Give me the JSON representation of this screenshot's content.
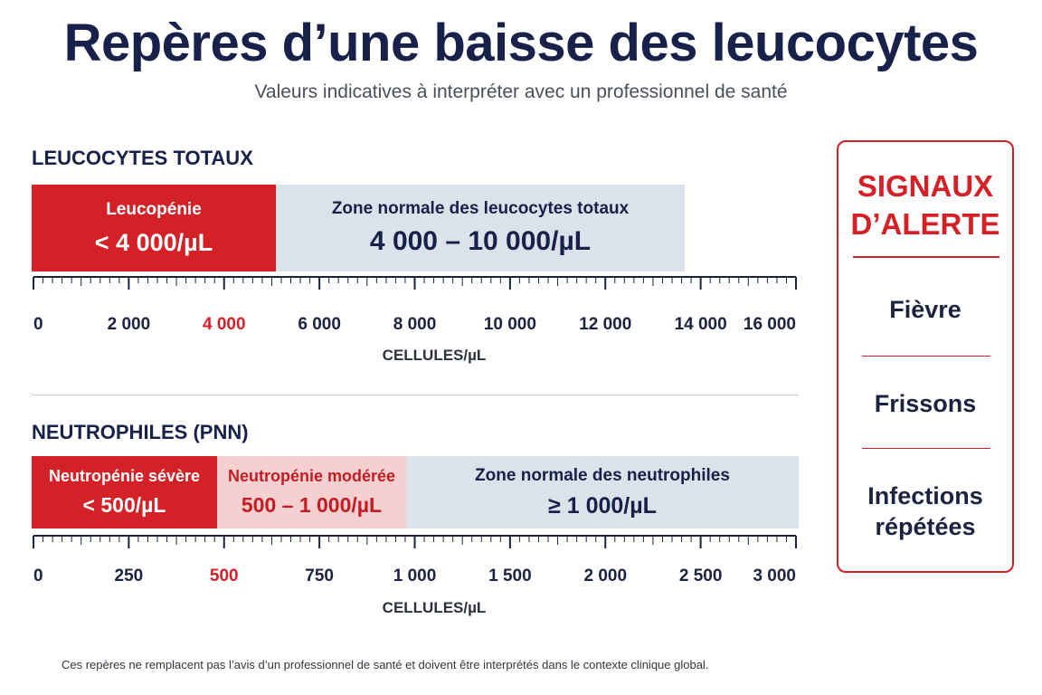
{
  "title": "Repères d’une baisse des leucocytes",
  "subtitle": "Valeurs indicatives à interpréter avec un professionnel de santé",
  "colors": {
    "red": "#d42027",
    "light_red": "#f6cfd0",
    "normal_blue": "#dbe2ea",
    "navy": "#17214a"
  },
  "leucocytes": {
    "heading": "LEUCOCYTES TOTAUX",
    "zones": {
      "low": {
        "label": "Leucopénie",
        "range": "< 4 000/µL"
      },
      "normal": {
        "label": "Zone normale des leucocytes totaux",
        "range": "4 000 – 10 000/µL"
      }
    },
    "axis": {
      "unit": "CELLULES/µL",
      "ticks": [
        "0",
        "2 000",
        "4 000",
        "6 000",
        "8 000",
        "10 000",
        "12 000",
        "14 000",
        "16 000"
      ],
      "highlight_tick": "4 000"
    }
  },
  "neutrophiles": {
    "heading": "NEUTROPHILES (PNN)",
    "zones": {
      "severe": {
        "label": "Neutropénie sévère",
        "range": "< 500/µL"
      },
      "moderate": {
        "label": "Neutropénie modérée",
        "range": "500 – 1 000/µL"
      },
      "normal": {
        "label": "Zone normale des neutrophiles",
        "range": "≥ 1 000/µL"
      }
    },
    "axis": {
      "unit": "CELLULES/µL",
      "ticks": [
        "0",
        "250",
        "500",
        "750",
        "1 000",
        "1 500",
        "2 000",
        "2 500",
        "3 000"
      ],
      "highlight_tick": "500"
    }
  },
  "alerts": {
    "title_line1": "SIGNAUX",
    "title_line2": "D’ALERTE",
    "items": [
      "Fièvre",
      "Frissons",
      "Infections",
      "répétées"
    ]
  },
  "footnote": "Ces repères ne remplacent pas l’avis d’un professionnel de santé et doivent être interprétés dans le contexte clinique global."
}
